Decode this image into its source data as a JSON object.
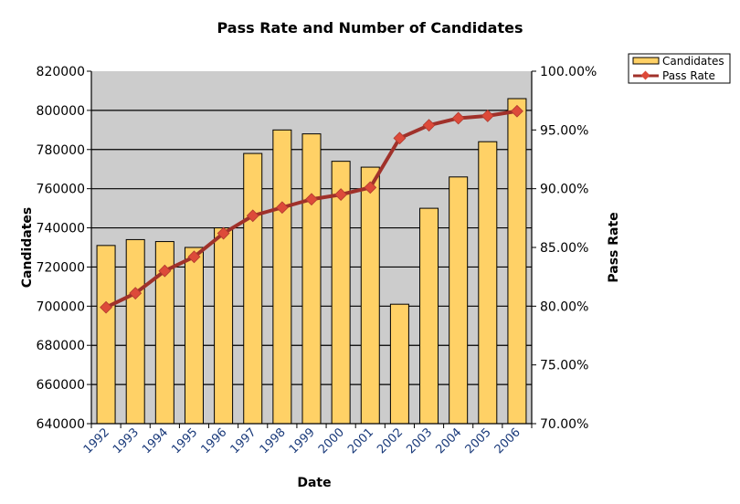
{
  "chart_data": {
    "type": "bar+line",
    "title": "Pass Rate and Number of Candidates",
    "xlabel": "Date",
    "ylabel": "Candidates",
    "y2label": "Pass Rate",
    "categories": [
      "1992",
      "1993",
      "1994",
      "1995",
      "1996",
      "1997",
      "1998",
      "1999",
      "2000",
      "2001",
      "2002",
      "2003",
      "2004",
      "2005",
      "2006"
    ],
    "series": [
      {
        "name": "Candidates",
        "type": "bar",
        "axis": "left",
        "color": "#FFD166",
        "values": [
          731000,
          734000,
          733000,
          730000,
          740000,
          778000,
          790000,
          788000,
          774000,
          771000,
          701000,
          750000,
          766000,
          784000,
          806000
        ]
      },
      {
        "name": "Pass Rate",
        "type": "line",
        "axis": "right",
        "color": "#A0312A",
        "marker_color": "#DD4A3A",
        "values": [
          79.9,
          81.1,
          83.0,
          84.2,
          86.2,
          87.7,
          88.4,
          89.1,
          89.5,
          90.1,
          94.3,
          95.4,
          96.0,
          96.2,
          96.6
        ]
      }
    ],
    "ylim": [
      640000,
      820000
    ],
    "yticks": [
      "640000",
      "660000",
      "680000",
      "700000",
      "720000",
      "740000",
      "760000",
      "780000",
      "800000",
      "820000"
    ],
    "y2lim": [
      70,
      100
    ],
    "y2ticks": [
      "70.00%",
      "75.00%",
      "80.00%",
      "85.00%",
      "90.00%",
      "95.00%",
      "100.00%"
    ],
    "grid": true,
    "plot_background": "#CCCCCC",
    "legend": "top-right"
  }
}
